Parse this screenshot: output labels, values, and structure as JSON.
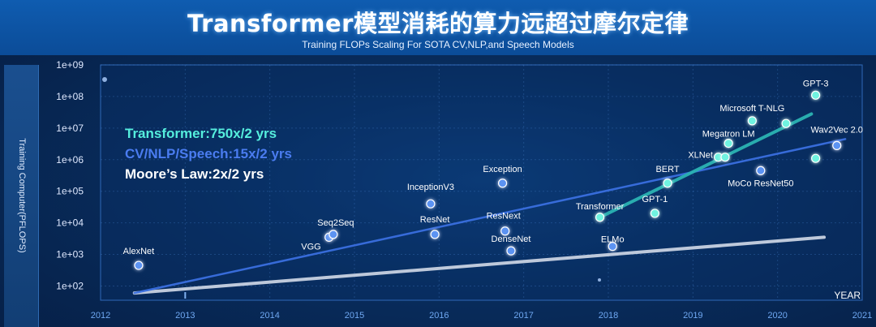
{
  "header": {
    "title": "Transformer模型消耗的算力远超过摩尔定律",
    "subtitle": "Training FLOPs Scaling For SOTA CV,NLP,and Speech Models"
  },
  "chart_data": {
    "type": "scatter",
    "ylabel": "Training Computer(PFLOPS)",
    "xlabel": "YEAR",
    "x_ticks": [
      "2012",
      "2013",
      "2014",
      "2015",
      "2016",
      "2017",
      "2018",
      "2019",
      "2020",
      "2021"
    ],
    "y_ticks": [
      "1e+02",
      "1e+03",
      "1e+04",
      "1e+05",
      "1e+06",
      "1e+07",
      "1e+08",
      "1e+09"
    ],
    "xlim": [
      2012,
      2021
    ],
    "ylog_lim": [
      1.55,
      9
    ],
    "legend": [
      {
        "label": "Transformer:750x/2 yrs",
        "color": "#55eedd"
      },
      {
        "label": "CV/NLP/Speech:15x/2 yrs",
        "color": "#4a7cf0"
      },
      {
        "label": "Moore’s Law:2x/2 yrs",
        "color": "#ffffff"
      }
    ],
    "models": [
      {
        "name": "AlexNet",
        "x": 2012.45,
        "y": 450,
        "group": "cv"
      },
      {
        "name": "VGG",
        "x": 2014.7,
        "y": 3500,
        "group": "cv"
      },
      {
        "name": "Seq2Seq",
        "x": 2014.75,
        "y": 4300,
        "group": "cv"
      },
      {
        "name": "InceptionV3",
        "x": 2015.9,
        "y": 40000,
        "group": "cv"
      },
      {
        "name": "ResNet",
        "x": 2015.95,
        "y": 4300,
        "group": "cv"
      },
      {
        "name": "Exception",
        "x": 2016.75,
        "y": 180000,
        "group": "cv"
      },
      {
        "name": "ResNext",
        "x": 2016.78,
        "y": 5500,
        "group": "cv"
      },
      {
        "name": "DenseNet",
        "x": 2016.85,
        "y": 1300,
        "group": "cv"
      },
      {
        "name": "ELMo",
        "x": 2018.05,
        "y": 1800,
        "group": "cv"
      },
      {
        "name": "Transformer",
        "x": 2017.9,
        "y": 15000,
        "group": "transformer"
      },
      {
        "name": "GPT-1",
        "x": 2018.55,
        "y": 20000,
        "group": "transformer"
      },
      {
        "name": "BERT",
        "x": 2018.7,
        "y": 180000,
        "group": "transformer"
      },
      {
        "name": "XLNet",
        "x": 2019.3,
        "y": 1200000,
        "group": "transformer"
      },
      {
        "name": "",
        "x": 2019.38,
        "y": 1200000,
        "group": "transformer"
      },
      {
        "name": "Megatron LM",
        "x": 2019.42,
        "y": 3300000,
        "group": "transformer"
      },
      {
        "name": "MoCo ResNet50",
        "x": 2019.8,
        "y": 450000,
        "group": "cv"
      },
      {
        "name": "Microsoft T-NLG",
        "x": 2019.7,
        "y": 17000000,
        "group": "transformer"
      },
      {
        "name": "",
        "x": 2020.1,
        "y": 14000000,
        "group": "transformer"
      },
      {
        "name": "GPT-3",
        "x": 2020.45,
        "y": 110000000,
        "group": "transformer"
      },
      {
        "name": "",
        "x": 2020.45,
        "y": 1100000,
        "group": "transformer"
      },
      {
        "name": "Wav2Vec 2.0",
        "x": 2020.7,
        "y": 2800000,
        "group": "cv"
      }
    ],
    "trend_lines": [
      {
        "name": "Transformer:750x/2 yrs",
        "x": [
          2017.9,
          2020.4
        ],
        "y": [
          15000,
          28000000
        ],
        "color": "#2bb3b3"
      },
      {
        "name": "CV/NLP/Speech:15x/2 yrs",
        "x": [
          2012.4,
          2020.8
        ],
        "y": [
          60,
          4500000
        ],
        "color": "#3a6fe0"
      },
      {
        "name": "Moore’s Law:2x/2 yrs",
        "x": [
          2012.4,
          2020.55
        ],
        "y": [
          60,
          3500
        ],
        "color": "#c8d2e2"
      }
    ]
  }
}
